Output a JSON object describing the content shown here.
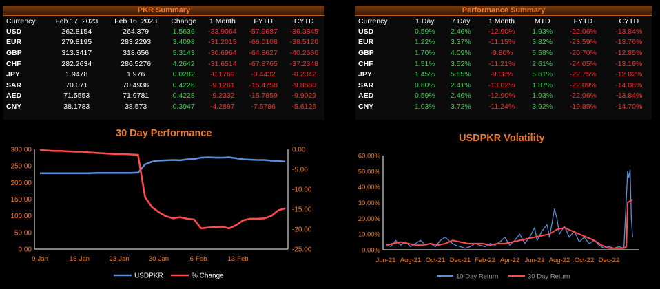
{
  "pkr_summary": {
    "title": "PKR Summary",
    "headers": [
      "Currency",
      "Feb 17, 2023",
      "Feb 16, 2023",
      "Change",
      "1 Month",
      "FYTD",
      "CYTD"
    ],
    "rows": [
      [
        "USD",
        "262.8154",
        "264.379",
        "1.5636",
        "-33.9064",
        "-57.9687",
        "-36.3845"
      ],
      [
        "EUR",
        "279.8195",
        "283.2293",
        "3.4098",
        "-31.2015",
        "-66.0108",
        "-38.5120"
      ],
      [
        "GBP",
        "313.3417",
        "318.656",
        "5.3143",
        "-30.6964",
        "-64.8627",
        "-40.2660"
      ],
      [
        "CHF",
        "282.2634",
        "286.5276",
        "4.2642",
        "-31.6514",
        "-67.8765",
        "-37.2348"
      ],
      [
        "JPY",
        "1.9478",
        "1.976",
        "0.0282",
        "-0.1769",
        "-0.4432",
        "-0.2342"
      ],
      [
        "SAR",
        "70.071",
        "70.4936",
        "0.4226",
        "-9.1261",
        "-15.4758",
        "-9.8660"
      ],
      [
        "AED",
        "71.5553",
        "71.9781",
        "0.4228",
        "-9.2332",
        "-15.7859",
        "-9.9029"
      ],
      [
        "CNY",
        "38.1783",
        "38.573",
        "0.3947",
        "-4.2897",
        "-7.5786",
        "-5.6126"
      ]
    ]
  },
  "performance_summary": {
    "title": "Performance Summary",
    "headers": [
      "Currency",
      "1 Day",
      "7 Day",
      "1 Month",
      "MTD",
      "FYTD",
      "CYTD"
    ],
    "rows": [
      [
        "USD",
        "0.59%",
        "2.46%",
        "-12.90%",
        "1.93%",
        "-22.06%",
        "-13.84%"
      ],
      [
        "EUR",
        "1.22%",
        "3.37%",
        "-11.15%",
        "3.82%",
        "-23.59%",
        "-13.76%"
      ],
      [
        "GBP",
        "1.70%",
        "4.09%",
        "-9.80%",
        "5.58%",
        "-20.70%",
        "-12.85%"
      ],
      [
        "CHF",
        "1.51%",
        "3.52%",
        "-11.21%",
        "2.61%",
        "-24.05%",
        "-13.19%"
      ],
      [
        "JPY",
        "1.45%",
        "5.85%",
        "-9.08%",
        "5.61%",
        "-22.75%",
        "-12.02%"
      ],
      [
        "SAR",
        "0.60%",
        "2.41%",
        "-13.02%",
        "1.87%",
        "-22.09%",
        "-14.08%"
      ],
      [
        "AED",
        "0.59%",
        "2.46%",
        "-12.90%",
        "1.93%",
        "-22.06%",
        "-13.84%"
      ],
      [
        "CNY",
        "1.03%",
        "3.72%",
        "-11.24%",
        "3.92%",
        "-19.85%",
        "-14.70%"
      ]
    ]
  },
  "colors": {
    "positive": "#37d04a",
    "negative": "#ff2b2b",
    "accent": "#f07c2a",
    "blue": "#5b8ed6",
    "red": "#ff4b4b"
  },
  "chart_data": [
    {
      "type": "line",
      "title": "30 Day Performance",
      "x_ticks": [
        "9-Jan",
        "16-Jan",
        "23-Jan",
        "30-Jan",
        "6-Feb",
        "13-Feb"
      ],
      "y_left": {
        "ylim": [
          0,
          300
        ],
        "ticks": [
          "0.00",
          "50.00",
          "100.00",
          "150.00",
          "200.00",
          "250.00",
          "300.00"
        ]
      },
      "y_right": {
        "ylim": [
          -25,
          0
        ],
        "ticks": [
          "-25.00",
          "-20.00",
          "-15.00",
          "-10.00",
          "-5.00",
          "0.00"
        ]
      },
      "series": [
        {
          "name": "USDPKR",
          "axis": "left",
          "color": "#5b8ed6",
          "values": [
            228,
            228,
            228,
            228,
            228,
            228,
            228,
            228,
            229,
            229,
            229,
            229,
            229,
            229,
            230,
            255,
            263,
            266,
            267,
            268,
            267,
            270,
            271,
            275,
            276,
            275,
            275,
            276,
            273,
            270,
            269,
            268,
            268,
            266,
            265,
            263
          ]
        },
        {
          "name": "% Change",
          "axis": "right",
          "color": "#ff4b4b",
          "values": [
            -0.2,
            -0.3,
            -0.4,
            -0.4,
            -0.5,
            -0.6,
            -0.6,
            -0.8,
            -0.9,
            -1.0,
            -1.1,
            -1.2,
            -1.2,
            -1.3,
            -1.4,
            -12.0,
            -14.5,
            -15.8,
            -16.8,
            -17.3,
            -17.0,
            -17.4,
            -17.6,
            -19.8,
            -19.6,
            -19.5,
            -19.4,
            -19.8,
            -19.0,
            -17.8,
            -17.4,
            -17.4,
            -17.3,
            -16.7,
            -15.3,
            -14.8
          ]
        }
      ],
      "legend": "bottom"
    },
    {
      "type": "line",
      "title": "USDPKR Volatility",
      "x_ticks": [
        "Jun-21",
        "Aug-21",
        "Oct-21",
        "Dec-21",
        "Feb-22",
        "Apr-22",
        "Jun-22",
        "Aug-22",
        "Oct-22",
        "Dec-22"
      ],
      "ylim": [
        0,
        60
      ],
      "y_ticks": [
        "0.00%",
        "10.00%",
        "20.00%",
        "30.00%",
        "40.00%",
        "50.00%",
        "60.00%"
      ],
      "series": [
        {
          "name": "10 Day Return",
          "color": "#5b8ed6",
          "points": [
            [
              0,
              4
            ],
            [
              0.2,
              2
            ],
            [
              0.4,
              6
            ],
            [
              0.6,
              3
            ],
            [
              0.8,
              5
            ],
            [
              1.0,
              2
            ],
            [
              1.2,
              4
            ],
            [
              1.4,
              6
            ],
            [
              1.6,
              3
            ],
            [
              1.8,
              4
            ],
            [
              2.0,
              2
            ],
            [
              2.2,
              6
            ],
            [
              2.4,
              8
            ],
            [
              2.6,
              5
            ],
            [
              2.8,
              3
            ],
            [
              3.0,
              2
            ],
            [
              3.2,
              1
            ],
            [
              3.4,
              2
            ],
            [
              3.6,
              4
            ],
            [
              3.8,
              3
            ],
            [
              4.0,
              2
            ],
            [
              4.2,
              4
            ],
            [
              4.4,
              3
            ],
            [
              4.6,
              5
            ],
            [
              4.8,
              8
            ],
            [
              5.0,
              3
            ],
            [
              5.2,
              6
            ],
            [
              5.4,
              10
            ],
            [
              5.6,
              4
            ],
            [
              5.8,
              8
            ],
            [
              6.0,
              14
            ],
            [
              6.1,
              6
            ],
            [
              6.3,
              12
            ],
            [
              6.5,
              16
            ],
            [
              6.6,
              8
            ],
            [
              6.8,
              26
            ],
            [
              6.9,
              20
            ],
            [
              7.0,
              10
            ],
            [
              7.2,
              15
            ],
            [
              7.4,
              8
            ],
            [
              7.6,
              12
            ],
            [
              7.8,
              5
            ],
            [
              8.0,
              8
            ],
            [
              8.2,
              4
            ],
            [
              8.4,
              6
            ],
            [
              8.6,
              3
            ],
            [
              8.8,
              1
            ],
            [
              9.0,
              2
            ],
            [
              9.2,
              1
            ],
            [
              9.4,
              2
            ],
            [
              9.6,
              1
            ],
            [
              9.75,
              50
            ],
            [
              9.8,
              46
            ],
            [
              9.85,
              51
            ],
            [
              9.9,
              20
            ],
            [
              9.95,
              8
            ]
          ]
        },
        {
          "name": "30 Day Return",
          "color": "#ff4b4b",
          "points": [
            [
              0,
              3
            ],
            [
              0.3,
              4
            ],
            [
              0.6,
              5
            ],
            [
              0.9,
              4
            ],
            [
              1.2,
              3
            ],
            [
              1.5,
              3
            ],
            [
              1.8,
              4
            ],
            [
              2.1,
              3
            ],
            [
              2.4,
              4
            ],
            [
              2.7,
              6
            ],
            [
              3.0,
              5
            ],
            [
              3.3,
              4
            ],
            [
              3.6,
              4
            ],
            [
              3.9,
              4
            ],
            [
              4.2,
              3
            ],
            [
              4.5,
              4
            ],
            [
              4.8,
              4
            ],
            [
              5.1,
              5
            ],
            [
              5.4,
              6
            ],
            [
              5.7,
              7
            ],
            [
              6.0,
              8
            ],
            [
              6.3,
              9
            ],
            [
              6.6,
              10
            ],
            [
              6.9,
              13
            ],
            [
              7.2,
              14
            ],
            [
              7.5,
              12
            ],
            [
              7.8,
              10
            ],
            [
              8.1,
              8
            ],
            [
              8.4,
              6
            ],
            [
              8.7,
              3
            ],
            [
              9.0,
              1
            ],
            [
              9.3,
              1
            ],
            [
              9.6,
              1
            ],
            [
              9.7,
              2
            ],
            [
              9.75,
              30
            ],
            [
              9.85,
              31
            ],
            [
              9.95,
              32
            ]
          ]
        }
      ],
      "legend": "bottom"
    }
  ]
}
